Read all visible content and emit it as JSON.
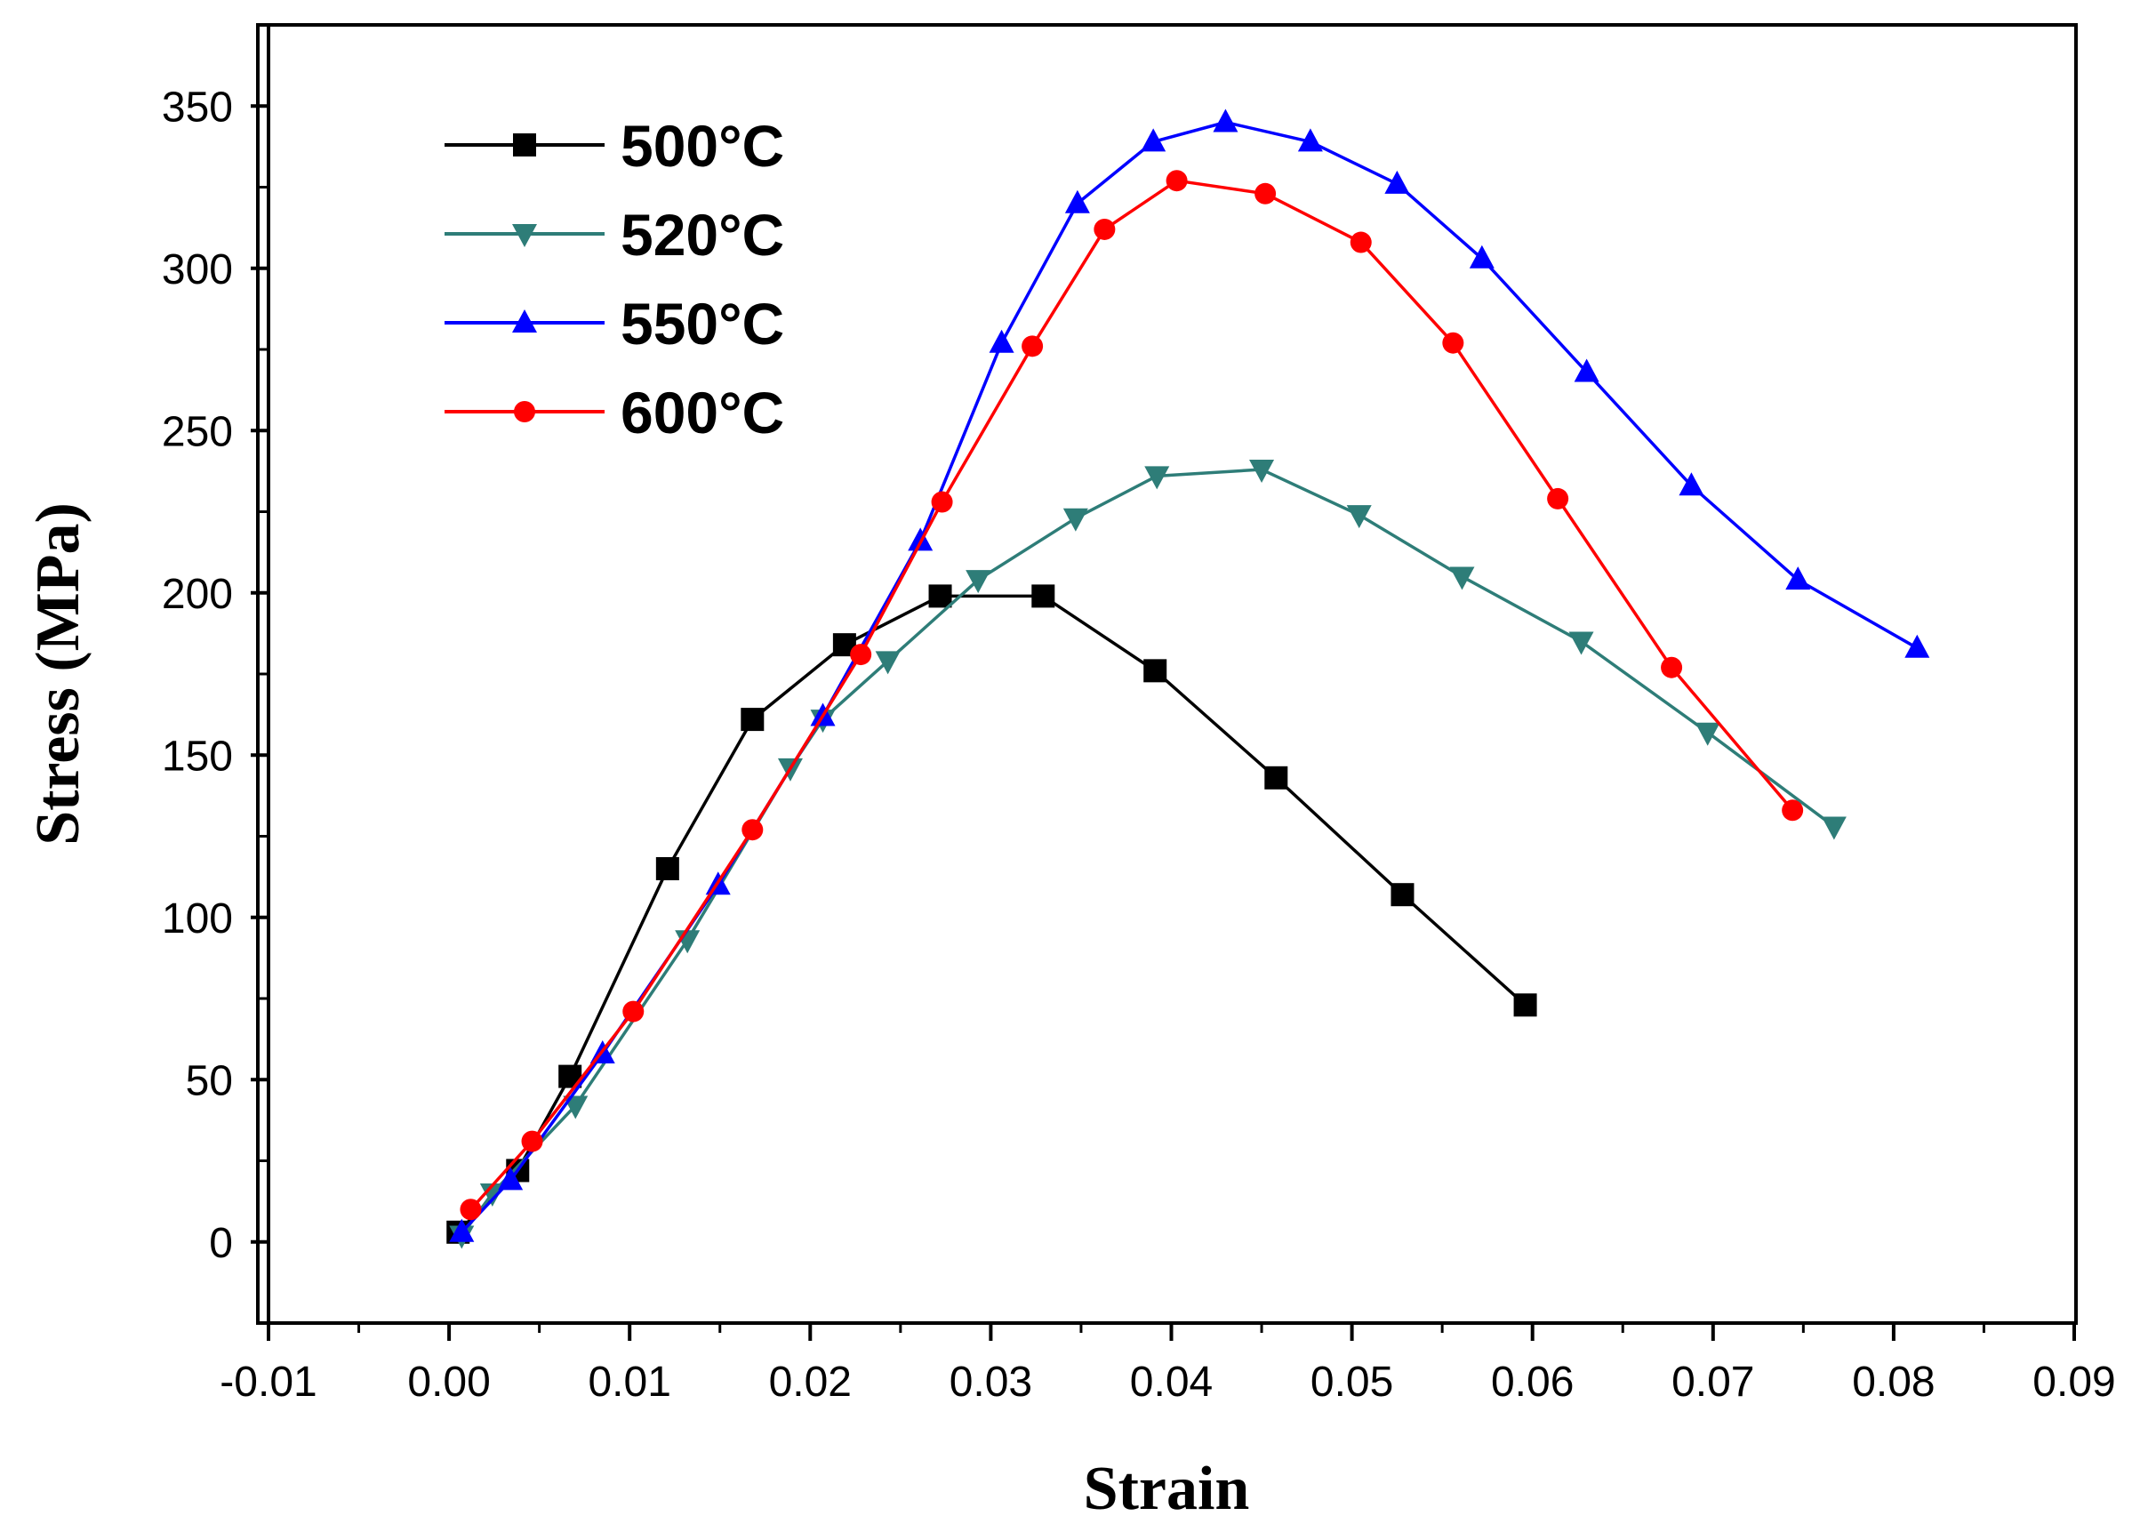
{
  "chart_data": {
    "type": "line",
    "title": "",
    "xlabel": "Strain",
    "ylabel": "Stress (MPa)",
    "xlim": [
      -0.01,
      0.09
    ],
    "ylim": [
      -25,
      375
    ],
    "xticks": [
      -0.01,
      0.0,
      0.01,
      0.02,
      0.03,
      0.04,
      0.05,
      0.06,
      0.07,
      0.08,
      0.09
    ],
    "xtick_labels": [
      "-0.01",
      "0.00",
      "0.01",
      "0.02",
      "0.03",
      "0.04",
      "0.05",
      "0.06",
      "0.07",
      "0.08",
      "0.09"
    ],
    "yticks": [
      0,
      50,
      100,
      150,
      200,
      250,
      300,
      350
    ],
    "ytick_labels": [
      "0",
      "50",
      "100",
      "150",
      "200",
      "250",
      "300",
      "350"
    ],
    "grid": false,
    "legend_position": "top-left",
    "series": [
      {
        "name": "500°C",
        "color": "#000000",
        "marker": "square",
        "x": [
          0.0005,
          0.0038,
          0.0067,
          0.0121,
          0.0168,
          0.0219,
          0.0272,
          0.0329,
          0.0391,
          0.0458,
          0.0528,
          0.0596
        ],
        "y": [
          3,
          22,
          51,
          115,
          161,
          184,
          199,
          199,
          176,
          143,
          107,
          73
        ]
      },
      {
        "name": "520°C",
        "color": "#2e7d78",
        "marker": "triangle-down",
        "x": [
          0.0007,
          0.0024,
          0.007,
          0.0132,
          0.0189,
          0.0207,
          0.0243,
          0.0293,
          0.0347,
          0.0392,
          0.045,
          0.0504,
          0.0561,
          0.0627,
          0.0697,
          0.0767
        ],
        "y": [
          2,
          15,
          42,
          93,
          146,
          161,
          179,
          204,
          223,
          236,
          238,
          224,
          205,
          185,
          157,
          128
        ]
      },
      {
        "name": "550°C",
        "color": "#0000ff",
        "marker": "triangle-up",
        "x": [
          0.0007,
          0.0034,
          0.0085,
          0.0149,
          0.0207,
          0.0261,
          0.0306,
          0.0348,
          0.039,
          0.043,
          0.0477,
          0.0525,
          0.0572,
          0.063,
          0.0688,
          0.0747,
          0.0813
        ],
        "y": [
          3,
          19,
          58,
          110,
          162,
          216,
          277,
          320,
          339,
          345,
          339,
          326,
          303,
          268,
          233,
          204,
          183
        ]
      },
      {
        "name": "600°C",
        "color": "#ff0000",
        "marker": "circle",
        "x": [
          0.0012,
          0.0046,
          0.0102,
          0.0168,
          0.0228,
          0.0273,
          0.0323,
          0.0363,
          0.0403,
          0.0452,
          0.0505,
          0.0556,
          0.0614,
          0.0677,
          0.0744
        ],
        "y": [
          10,
          31,
          71,
          127,
          181,
          228,
          276,
          312,
          327,
          323,
          308,
          277,
          229,
          177,
          133
        ]
      }
    ]
  }
}
